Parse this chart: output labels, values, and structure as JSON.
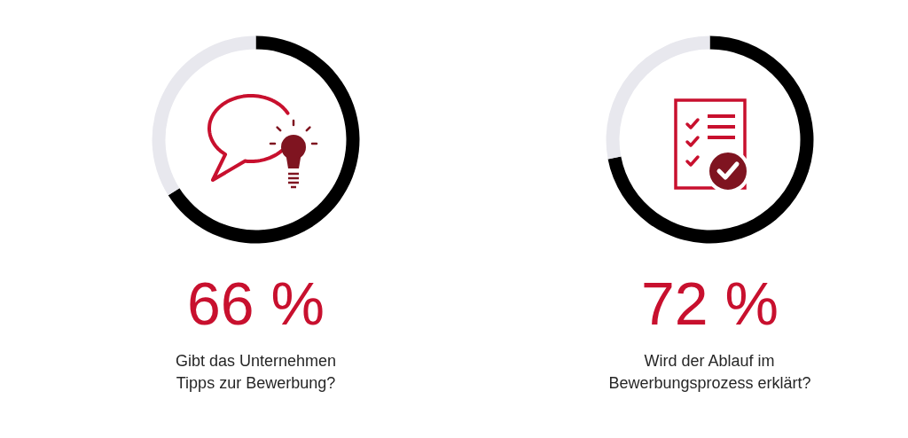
{
  "chart_data": [
    {
      "type": "donut",
      "title": "Gibt das Unternehmen\nTipps zur Bewerbung?",
      "categories": [
        null,
        null
      ],
      "values": [
        66,
        34
      ],
      "colors": [
        "#000000",
        "#e8e8ee"
      ],
      "value_labels": [
        "66 %",
        null
      ]
    },
    {
      "type": "donut",
      "title": "Wird der Ablauf im\nBewerbungsprozess erklärt?",
      "categories": [
        null,
        null
      ],
      "values": [
        72,
        28
      ],
      "colors": [
        "#000000",
        "#e8e8ee"
      ],
      "value_labels": [
        "72 %",
        null
      ]
    }
  ]
}
